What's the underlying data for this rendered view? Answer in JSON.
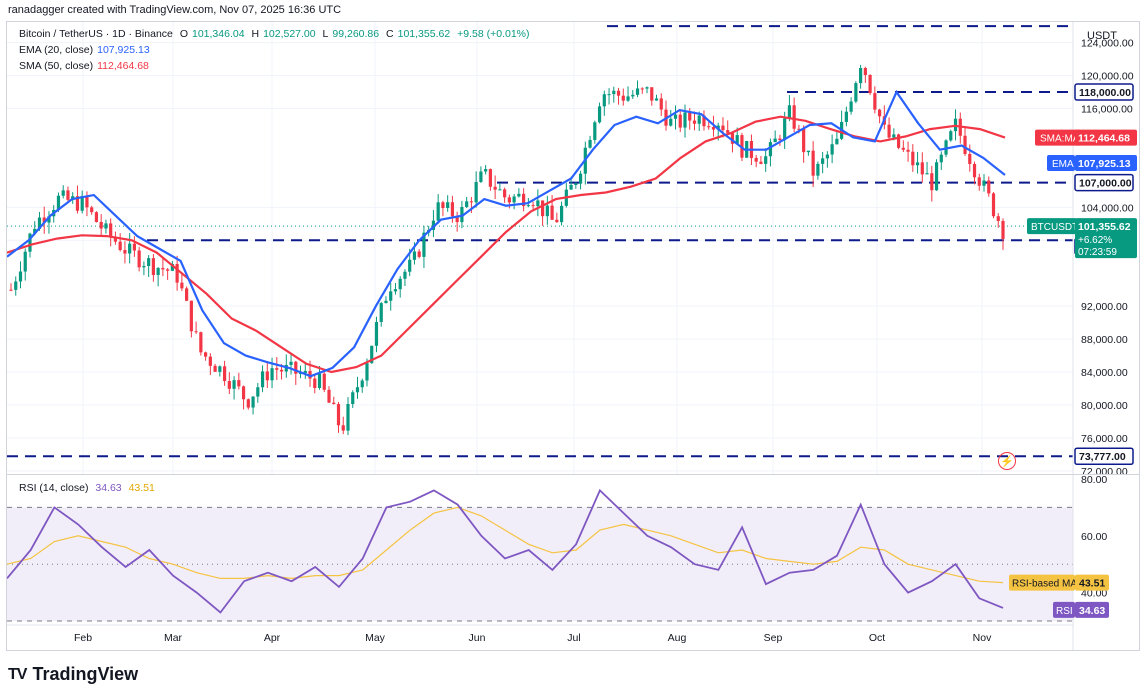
{
  "header": {
    "text": "ranadagger created with TradingView.com, Nov 07, 2025 16:36 UTC"
  },
  "legend": {
    "symbol": "Bitcoin / TetherUS · 1D · Binance",
    "ohlc": {
      "o_label": "O",
      "o": "101,346.04",
      "h_label": "H",
      "h": "102,527.00",
      "l_label": "L",
      "l": "99,260.86",
      "c_label": "C",
      "c": "101,355.62",
      "chg": "+9.58 (+0.01%)"
    },
    "ema": {
      "label": "EMA (20, close)",
      "value": "107,925.13"
    },
    "sma": {
      "label": "SMA (50, close)",
      "value": "112,464.68"
    },
    "rsi": {
      "label": "RSI (14, close)",
      "value": "34.63",
      "ma": "43.51"
    }
  },
  "axis": {
    "currency": "USDT"
  },
  "badges": {
    "r118": "118,000.00",
    "r107": "107,000.00",
    "s100": "100,000.00",
    "s73": "73,777.00",
    "sma_tag": "SMA:MA",
    "sma_val": "112,464.68",
    "ema_tag": "EMA",
    "ema_val": "107,925.13",
    "sym_tag": "BTCUSDT",
    "price": "101,355.62",
    "pct": "+6.62%",
    "timer": "07:23:59",
    "rsi_ma_tag": "RSI-based MA",
    "rsi_ma_val": "43.51",
    "rsi_tag": "RSI",
    "rsi_val": "34.63"
  },
  "brand": {
    "name": "TradingView",
    "logo": "TV"
  },
  "colors": {
    "up": "#089981",
    "down": "#f23645",
    "ema": "#2962ff",
    "sma": "#f23645",
    "rsi": "#7e57c2",
    "rsi_ma": "#f5c342",
    "level": "#0d1a8c"
  },
  "chart_data": [
    {
      "type": "candlestick",
      "title": "Bitcoin / TetherUS · 1D · Binance",
      "y_ticks": [
        72000,
        76000,
        80000,
        84000,
        88000,
        92000,
        100000,
        104000,
        116000,
        120000,
        124000
      ],
      "ylim": [
        71500,
        126500
      ],
      "x_ticks": [
        "Feb",
        "Mar",
        "Apr",
        "May",
        "Jun",
        "Jul",
        "Aug",
        "Sep",
        "Oct",
        "Nov"
      ],
      "levels": [
        73777,
        100000,
        107000,
        118000,
        126000
      ],
      "series": [
        {
          "name": "EMA (20, close)",
          "values": [
            98000,
            100000,
            103000,
            105000,
            105500,
            103000,
            100500,
            99000,
            97500,
            91500,
            87500,
            86000,
            85200,
            84500,
            83500,
            84500,
            87000,
            92000,
            96500,
            100000,
            102500,
            103000,
            105000,
            104200,
            104500,
            106000,
            107500,
            111000,
            114000,
            115000,
            114200,
            115800,
            115300,
            113000,
            111000,
            111000,
            112500,
            114000,
            114200,
            112500,
            112000,
            118000,
            114200,
            111000,
            111500,
            110000,
            107925
          ]
        },
        {
          "name": "SMA (50, close)",
          "values": [
            98500,
            99500,
            100200,
            100600,
            100500,
            100000,
            98500,
            96000,
            93500,
            90500,
            89000,
            87000,
            85000,
            84000,
            84600,
            86000,
            89000,
            92000,
            95000,
            98000,
            101000,
            103500,
            105000,
            105500,
            105800,
            106500,
            107500,
            110000,
            112000,
            113000,
            114400,
            115000,
            114500,
            113500,
            112600,
            112000,
            112600,
            113500,
            113900,
            113500,
            112464
          ]
        },
        {
          "name": "Price (close)",
          "values": [
            94000,
            102000,
            105000,
            104500,
            101000,
            98500,
            97000,
            96000,
            86500,
            84000,
            80500,
            84500,
            84000,
            83000,
            77000,
            85000,
            94500,
            97000,
            104000,
            103000,
            108000,
            105000,
            105500,
            102000,
            108000,
            118000,
            117500,
            118000,
            114000,
            115000,
            114500,
            111000,
            110000,
            115500,
            108000,
            112000,
            122000,
            113000,
            110000,
            107000,
            114000,
            107500,
            101355
          ]
        }
      ]
    },
    {
      "type": "line",
      "title": "RSI (14, close)",
      "y_ticks": [
        40,
        60,
        80
      ],
      "ylim": [
        30,
        80
      ],
      "series": [
        {
          "name": "RSI",
          "values": [
            45,
            55,
            70,
            64,
            56,
            49,
            55,
            46,
            40,
            33,
            44,
            47,
            44,
            49,
            42,
            52,
            70,
            72,
            76,
            71,
            60,
            52,
            55,
            48,
            57,
            76,
            68,
            60,
            56,
            50,
            48,
            63,
            43,
            47,
            48,
            53,
            71,
            50,
            40,
            44,
            50,
            38,
            34.63
          ]
        },
        {
          "name": "RSI-based MA",
          "values": [
            50,
            52,
            58,
            60,
            58,
            56,
            52,
            50,
            47,
            45,
            45,
            46,
            45,
            46,
            46,
            48,
            55,
            62,
            68,
            70,
            67,
            62,
            57,
            54,
            55,
            62,
            64,
            62,
            60,
            57,
            54,
            55,
            52,
            51,
            50,
            51,
            56,
            55,
            50,
            48,
            46,
            44,
            43.51
          ]
        }
      ]
    }
  ]
}
